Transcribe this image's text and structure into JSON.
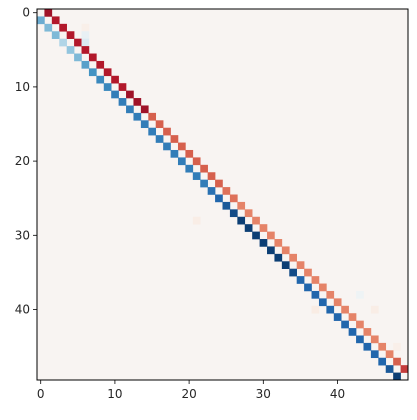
{
  "chart_data": {
    "type": "heatmap",
    "title": "",
    "xlabel": "",
    "ylabel": "",
    "n": 50,
    "xlim": [
      -0.5,
      49.5
    ],
    "ylim": [
      49.5,
      -0.5
    ],
    "x_ticks": [
      0,
      10,
      20,
      30,
      40
    ],
    "y_ticks": [
      0,
      10,
      20,
      30,
      40
    ],
    "x_tick_labels": [
      "0",
      "10",
      "20",
      "30",
      "40"
    ],
    "y_tick_labels": [
      "0",
      "10",
      "20",
      "30",
      "40"
    ],
    "colormap": "RdBu_r",
    "background_value": 0.02,
    "value_range": [
      -1,
      1
    ],
    "superdiagonal": [
      0.85,
      0.8,
      0.8,
      0.8,
      0.8,
      0.8,
      0.8,
      0.8,
      0.8,
      0.8,
      0.8,
      0.85,
      0.85,
      0.85,
      0.6,
      0.6,
      0.6,
      0.6,
      0.6,
      0.6,
      0.6,
      0.6,
      0.6,
      0.6,
      0.55,
      0.55,
      0.5,
      0.5,
      0.5,
      0.5,
      0.5,
      0.5,
      0.5,
      0.5,
      0.5,
      0.5,
      0.5,
      0.5,
      0.5,
      0.5,
      0.5,
      0.5,
      0.5,
      0.5,
      0.5,
      0.5,
      0.5,
      0.6,
      0.7
    ],
    "subdiagonal": [
      -0.5,
      -0.45,
      -0.45,
      -0.3,
      -0.4,
      -0.45,
      -0.55,
      -0.6,
      -0.65,
      -0.65,
      -0.7,
      -0.7,
      -0.7,
      -0.7,
      -0.7,
      -0.7,
      -0.7,
      -0.7,
      -0.7,
      -0.7,
      -0.7,
      -0.7,
      -0.7,
      -0.75,
      -0.8,
      -0.85,
      -0.9,
      -0.95,
      -0.95,
      -0.95,
      -0.95,
      -0.95,
      -0.95,
      -0.95,
      -0.9,
      -0.8,
      -0.8,
      -0.8,
      -0.8,
      -0.8,
      -0.8,
      -0.8,
      -0.8,
      -0.8,
      -0.8,
      -0.8,
      -0.8,
      -0.85,
      -0.95
    ],
    "scattered_cells": [
      {
        "row": 2,
        "col": 6,
        "value": 0.06
      },
      {
        "row": 4,
        "col": 6,
        "value": -0.15
      },
      {
        "row": 3,
        "col": 6,
        "value": -0.08
      },
      {
        "row": 28,
        "col": 21,
        "value": 0.07
      },
      {
        "row": 40,
        "col": 37,
        "value": 0.08
      },
      {
        "row": 40,
        "col": 45,
        "value": 0.07
      },
      {
        "row": 45,
        "col": 48,
        "value": 0.06
      },
      {
        "row": 38,
        "col": 43,
        "value": -0.05
      }
    ]
  }
}
